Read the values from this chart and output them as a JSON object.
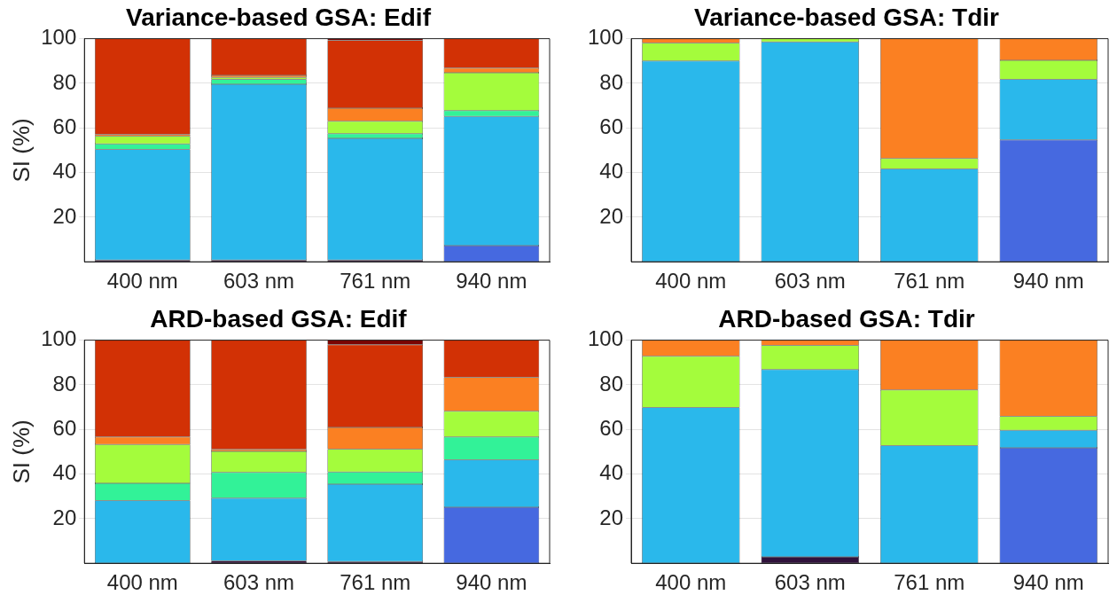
{
  "chart_data": [
    {
      "type": "bar",
      "title": "Variance-based GSA: Edif",
      "ylabel": "SI (%)",
      "categories": [
        "400 nm",
        "603 nm",
        "761 nm",
        "940 nm"
      ],
      "stacked": true,
      "ylim": [
        0,
        100
      ],
      "yticks": [
        20,
        40,
        60,
        80,
        100
      ],
      "grid": "y",
      "series": [
        {
          "color": "#30123b",
          "values": [
            0.8,
            0.8,
            0.8,
            null
          ]
        },
        {
          "color": "#4669e0",
          "values": [
            null,
            null,
            null,
            7.2
          ]
        },
        {
          "color": "#2ab8eb",
          "values": [
            49.6,
            78.8,
            54.5,
            58.0
          ]
        },
        {
          "color": "#32f298",
          "values": [
            2.4,
            2.2,
            2.1,
            2.5
          ]
        },
        {
          "color": "#a4fc3c",
          "values": [
            3.5,
            0.9,
            5.6,
            17.0
          ]
        },
        {
          "color": "#fb8022",
          "values": [
            0.8,
            0.8,
            5.8,
            2.1
          ]
        },
        {
          "color": "#d23105",
          "values": [
            42.9,
            16.5,
            30.4,
            13.2
          ]
        },
        {
          "color": "#7a0403",
          "values": [
            null,
            null,
            0.8,
            null
          ]
        }
      ]
    },
    {
      "type": "bar",
      "title": "Variance-based GSA: Tdir",
      "categories": [
        "400 nm",
        "603 nm",
        "761 nm",
        "940 nm"
      ],
      "stacked": true,
      "ylim": [
        0,
        100
      ],
      "yticks": [
        20,
        40,
        60,
        80,
        100
      ],
      "grid": "y",
      "series": [
        {
          "color": "#4669e0",
          "values": [
            null,
            null,
            null,
            54.6
          ]
        },
        {
          "color": "#2ab8eb",
          "values": [
            90.0,
            98.5,
            41.6,
            27.2
          ]
        },
        {
          "color": "#a4fc3c",
          "values": [
            8.1,
            1.5,
            4.7,
            8.5
          ]
        },
        {
          "color": "#fb8022",
          "values": [
            1.9,
            null,
            53.7,
            9.7
          ]
        }
      ]
    },
    {
      "type": "bar",
      "title": "ARD-based GSA: Edif",
      "ylabel": "SI (%)",
      "categories": [
        "400 nm",
        "603 nm",
        "761 nm",
        "940 nm"
      ],
      "stacked": true,
      "ylim": [
        0,
        100
      ],
      "yticks": [
        20,
        40,
        60,
        80,
        100
      ],
      "grid": "y",
      "series": [
        {
          "color": "#30123b",
          "values": [
            null,
            1.1,
            0.8,
            null
          ]
        },
        {
          "color": "#4669e0",
          "values": [
            null,
            null,
            null,
            25.1
          ]
        },
        {
          "color": "#2ab8eb",
          "values": [
            28.1,
            28.1,
            34.7,
            21.3
          ]
        },
        {
          "color": "#32f298",
          "values": [
            7.8,
            11.5,
            5.4,
            10.2
          ]
        },
        {
          "color": "#a4fc3c",
          "values": [
            17.3,
            9.5,
            10.3,
            11.5
          ]
        },
        {
          "color": "#fb8022",
          "values": [
            3.4,
            0.9,
            9.7,
            15.2
          ]
        },
        {
          "color": "#d23105",
          "values": [
            43.4,
            48.9,
            37.1,
            16.7
          ]
        },
        {
          "color": "#7a0403",
          "values": [
            null,
            null,
            2.0,
            null
          ]
        }
      ]
    },
    {
      "type": "bar",
      "title": "ARD-based GSA: Tdir",
      "categories": [
        "400 nm",
        "603 nm",
        "761 nm",
        "940 nm"
      ],
      "stacked": true,
      "ylim": [
        0,
        100
      ],
      "yticks": [
        20,
        40,
        60,
        80,
        100
      ],
      "grid": "y",
      "series": [
        {
          "color": "#30123b",
          "values": [
            null,
            2.9,
            null,
            null
          ]
        },
        {
          "color": "#4669e0",
          "values": [
            null,
            null,
            null,
            51.7
          ]
        },
        {
          "color": "#2ab8eb",
          "values": [
            69.8,
            83.9,
            52.7,
            7.9
          ]
        },
        {
          "color": "#a4fc3c",
          "values": [
            23.0,
            10.9,
            25.0,
            6.3
          ]
        },
        {
          "color": "#fb8022",
          "values": [
            7.2,
            2.3,
            22.3,
            34.1
          ]
        }
      ]
    }
  ]
}
